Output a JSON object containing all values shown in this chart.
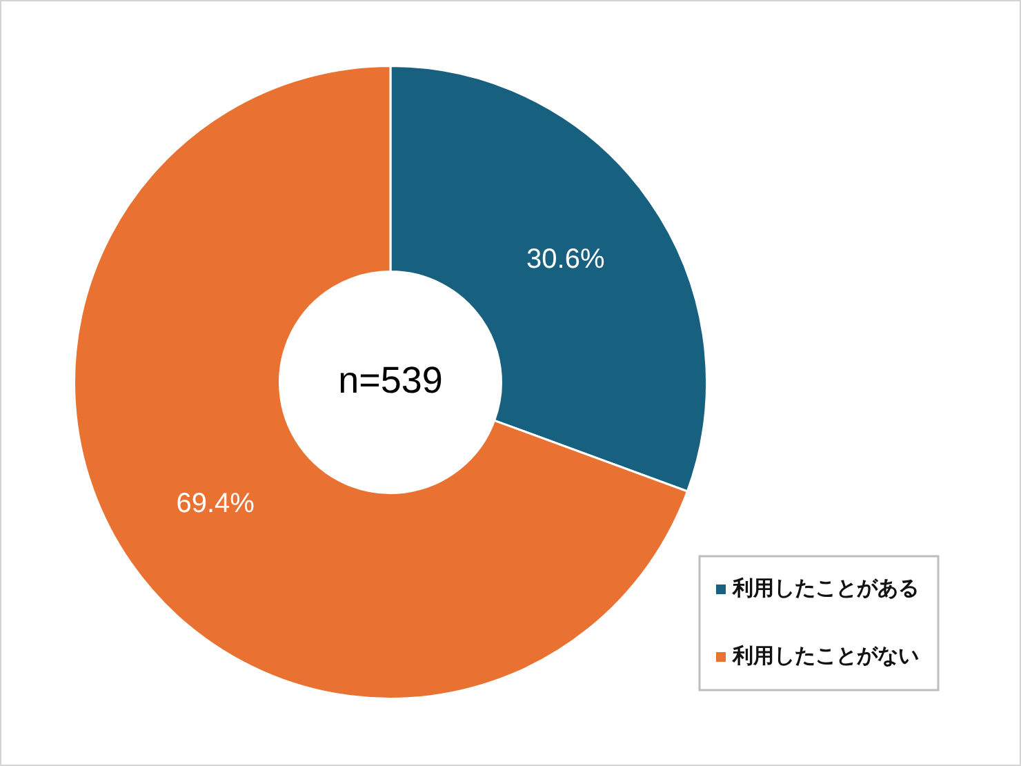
{
  "chart_data": {
    "type": "donut",
    "categories": [
      "利用したことがある",
      "利用したことがない"
    ],
    "values": [
      30.6,
      69.4
    ],
    "colors": [
      "#17607f",
      "#e97132"
    ],
    "value_labels": [
      "30.6%",
      "69.4%"
    ],
    "annotations": [
      "n=539"
    ],
    "legend": "bottom right"
  }
}
